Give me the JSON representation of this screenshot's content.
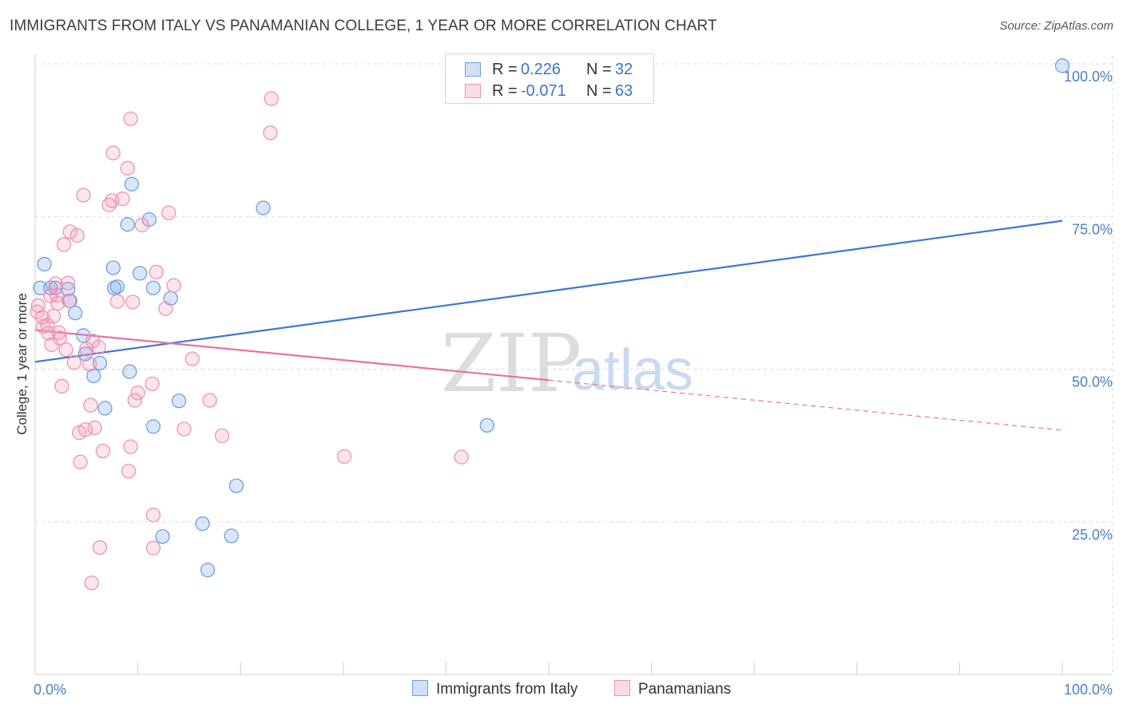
{
  "title": "IMMIGRANTS FROM ITALY VS PANAMANIAN COLLEGE, 1 YEAR OR MORE CORRELATION CHART",
  "source": "Source: ZipAtlas.com",
  "watermark": {
    "zip": "ZIP",
    "atlas": "atlas"
  },
  "legend": {
    "rows": [
      {
        "r_label": "R =",
        "r_value": "0.226",
        "n_label": "N =",
        "n_value": "32",
        "color": "#6f9fe0"
      },
      {
        "r_label": "R =",
        "r_value": "-0.071",
        "n_label": "N =",
        "n_value": "63",
        "color": "#ec92b3"
      }
    ]
  },
  "bottom_legend": [
    {
      "label": "Immigrants from Italy",
      "color": "#6f9fe0"
    },
    {
      "label": "Panamanians",
      "color": "#ec92b3"
    }
  ],
  "chart_data": {
    "type": "scatter",
    "title": "IMMIGRANTS FROM ITALY VS PANAMANIAN COLLEGE, 1 YEAR OR MORE CORRELATION CHART",
    "xlabel": "",
    "ylabel": "College, 1 year or more",
    "xlim": [
      0,
      100
    ],
    "ylim": [
      0,
      100
    ],
    "x_tick_labels": [
      "0.0%",
      "100.0%"
    ],
    "y_tick_labels": [
      "25.0%",
      "50.0%",
      "75.0%",
      "100.0%"
    ],
    "y_ticks": [
      25,
      50,
      75,
      100
    ],
    "grid": true,
    "legend_position": "top-center",
    "series": [
      {
        "name": "Immigrants from Italy",
        "color": "#3b78d0",
        "r": "0.226",
        "n": "32",
        "points": [
          [
            0.5,
            63.3
          ],
          [
            0.9,
            67.2
          ],
          [
            1.5,
            63.3
          ],
          [
            2.0,
            63.3
          ],
          [
            3.2,
            63.1
          ],
          [
            3.4,
            61.2
          ],
          [
            3.9,
            59.2
          ],
          [
            4.7,
            55.5
          ],
          [
            4.9,
            52.5
          ],
          [
            5.7,
            48.9
          ],
          [
            6.3,
            51.0
          ],
          [
            6.8,
            43.6
          ],
          [
            7.6,
            66.6
          ],
          [
            7.7,
            63.3
          ],
          [
            8.0,
            63.5
          ],
          [
            9.0,
            73.7
          ],
          [
            9.2,
            49.6
          ],
          [
            9.4,
            80.3
          ],
          [
            10.2,
            65.7
          ],
          [
            11.1,
            74.5
          ],
          [
            11.5,
            63.3
          ],
          [
            11.5,
            40.6
          ],
          [
            12.4,
            22.6
          ],
          [
            13.2,
            61.6
          ],
          [
            14.0,
            44.8
          ],
          [
            16.3,
            24.7
          ],
          [
            16.8,
            17.1
          ],
          [
            19.1,
            22.7
          ],
          [
            19.6,
            30.9
          ],
          [
            22.2,
            76.4
          ],
          [
            44.0,
            40.8
          ],
          [
            100.0,
            99.7
          ]
        ],
        "trend": {
          "x": [
            0,
            100
          ],
          "y": [
            51.2,
            74.3
          ],
          "dashed_from": null
        }
      },
      {
        "name": "Panamanians",
        "color": "#e8719c",
        "r": "-0.071",
        "n": "63",
        "points": [
          [
            0.2,
            59.4
          ],
          [
            0.3,
            60.4
          ],
          [
            0.7,
            58.5
          ],
          [
            1.2,
            57.2
          ],
          [
            1.3,
            55.9
          ],
          [
            1.6,
            54.0
          ],
          [
            1.8,
            58.7
          ],
          [
            2.0,
            64.0
          ],
          [
            2.1,
            62.1
          ],
          [
            2.2,
            60.8
          ],
          [
            2.3,
            56.0
          ],
          [
            2.6,
            47.2
          ],
          [
            2.8,
            70.4
          ],
          [
            3.2,
            64.1
          ],
          [
            3.3,
            61.2
          ],
          [
            3.4,
            72.5
          ],
          [
            3.8,
            51.1
          ],
          [
            4.1,
            71.9
          ],
          [
            4.3,
            39.6
          ],
          [
            4.4,
            34.8
          ],
          [
            4.7,
            78.5
          ],
          [
            5.0,
            53.3
          ],
          [
            5.3,
            50.8
          ],
          [
            5.4,
            44.1
          ],
          [
            5.6,
            54.6
          ],
          [
            5.8,
            40.4
          ],
          [
            6.2,
            53.6
          ],
          [
            6.3,
            20.8
          ],
          [
            6.6,
            36.6
          ],
          [
            7.2,
            76.9
          ],
          [
            7.5,
            77.6
          ],
          [
            7.6,
            85.4
          ],
          [
            8.0,
            61.1
          ],
          [
            8.5,
            77.9
          ],
          [
            9.0,
            82.9
          ],
          [
            9.1,
            33.3
          ],
          [
            9.3,
            37.3
          ],
          [
            9.3,
            91.0
          ],
          [
            9.5,
            61.0
          ],
          [
            9.7,
            44.9
          ],
          [
            10.0,
            46.1
          ],
          [
            10.4,
            73.6
          ],
          [
            11.4,
            47.6
          ],
          [
            11.5,
            26.1
          ],
          [
            11.5,
            20.7
          ],
          [
            11.8,
            65.9
          ],
          [
            12.7,
            59.9
          ],
          [
            13.0,
            75.6
          ],
          [
            13.5,
            63.7
          ],
          [
            14.5,
            40.2
          ],
          [
            15.3,
            51.7
          ],
          [
            17.0,
            44.9
          ],
          [
            18.2,
            39.1
          ],
          [
            22.9,
            88.7
          ],
          [
            23.0,
            94.3
          ],
          [
            30.1,
            35.7
          ],
          [
            41.5,
            35.6
          ],
          [
            0.8,
            57.0
          ],
          [
            1.5,
            62.0
          ],
          [
            4.9,
            40.1
          ],
          [
            5.5,
            15.0
          ],
          [
            3.0,
            53.2
          ],
          [
            2.4,
            55.1
          ]
        ],
        "trend": {
          "x": [
            0,
            100
          ],
          "y": [
            56.4,
            40.0
          ],
          "dashed_from": 50
        }
      }
    ]
  }
}
